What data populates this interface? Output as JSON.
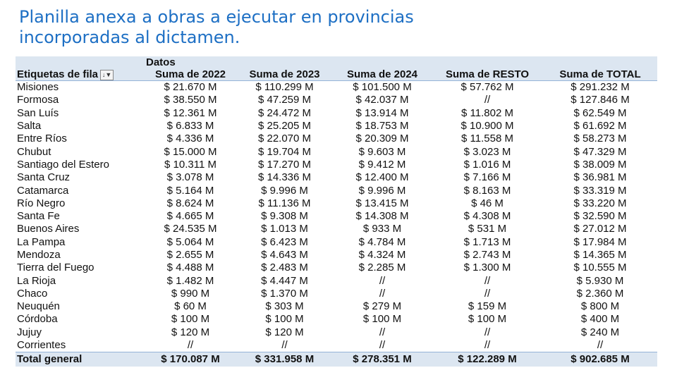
{
  "title_lines": [
    "Planilla anexa a obras a ejecutar en provincias",
    "incorporadas al dictamen."
  ],
  "table": {
    "group_header": "Datos",
    "row_label_header": "Etiquetas de fila",
    "filter_icon": "sort-filter-icon",
    "columns": [
      "Suma de 2022",
      "Suma de 2023",
      "Suma de 2024",
      "Suma de RESTO",
      "Suma de TOTAL"
    ],
    "rows": [
      [
        "Misiones",
        "$ 21.670 M",
        "$ 110.299 M",
        "$ 101.500 M",
        "$ 57.762 M",
        "$ 291.232 M"
      ],
      [
        "Formosa",
        "$ 38.550 M",
        "$ 47.259 M",
        "$ 42.037 M",
        "//",
        "$ 127.846 M"
      ],
      [
        "San Luís",
        "$ 12.361 M",
        "$ 24.472 M",
        "$ 13.914 M",
        "$ 11.802 M",
        "$ 62.549 M"
      ],
      [
        "Salta",
        "$ 6.833 M",
        "$ 25.205 M",
        "$ 18.753 M",
        "$ 10.900 M",
        "$ 61.692 M"
      ],
      [
        "Entre Ríos",
        "$ 4.336 M",
        "$ 22.070 M",
        "$ 20.309 M",
        "$ 11.558 M",
        "$ 58.273 M"
      ],
      [
        "Chubut",
        "$ 15.000 M",
        "$ 19.704 M",
        "$ 9.603 M",
        "$ 3.023 M",
        "$ 47.329 M"
      ],
      [
        "Santiago del Estero",
        "$ 10.311 M",
        "$ 17.270 M",
        "$ 9.412 M",
        "$ 1.016 M",
        "$ 38.009 M"
      ],
      [
        "Santa Cruz",
        "$ 3.078 M",
        "$ 14.336 M",
        "$ 12.400 M",
        "$ 7.166 M",
        "$ 36.981 M"
      ],
      [
        "Catamarca",
        "$ 5.164 M",
        "$ 9.996 M",
        "$ 9.996 M",
        "$ 8.163 M",
        "$ 33.319 M"
      ],
      [
        "Río Negro",
        "$ 8.624 M",
        "$ 11.136 M",
        "$ 13.415 M",
        "$ 46 M",
        "$ 33.220 M"
      ],
      [
        "Santa Fe",
        "$ 4.665 M",
        "$ 9.308 M",
        "$ 14.308 M",
        "$ 4.308 M",
        "$ 32.590 M"
      ],
      [
        "Buenos Aires",
        "$ 24.535 M",
        "$ 1.013 M",
        "$ 933 M",
        "$ 531 M",
        "$ 27.012 M"
      ],
      [
        "La Pampa",
        "$ 5.064 M",
        "$ 6.423 M",
        "$ 4.784 M",
        "$ 1.713 M",
        "$ 17.984 M"
      ],
      [
        "Mendoza",
        "$ 2.655 M",
        "$ 4.643 M",
        "$ 4.324 M",
        "$ 2.743 M",
        "$ 14.365 M"
      ],
      [
        "Tierra del Fuego",
        "$ 4.488 M",
        "$ 2.483 M",
        "$ 2.285 M",
        "$ 1.300 M",
        "$ 10.555 M"
      ],
      [
        "La Rioja",
        "$ 1.482 M",
        "$ 4.447 M",
        "//",
        "//",
        "$ 5.930 M"
      ],
      [
        "Chaco",
        "$ 990 M",
        "$ 1.370 M",
        "//",
        "//",
        "$ 2.360 M"
      ],
      [
        "Neuquén",
        "$ 60 M",
        "$ 303 M",
        "$ 279 M",
        "$ 159 M",
        "$ 800 M"
      ],
      [
        "Córdoba",
        "$ 100 M",
        "$ 100 M",
        "$ 100 M",
        "$ 100 M",
        "$ 400 M"
      ],
      [
        "Jujuy",
        "$ 120 M",
        "$ 120 M",
        "//",
        "//",
        "$ 240 M"
      ],
      [
        "Corrientes",
        "//",
        "//",
        "//",
        "//",
        "//"
      ]
    ],
    "total": [
      "Total general",
      "$ 170.087 M",
      "$ 331.958 M",
      "$ 278.351 M",
      "$ 122.289 M",
      "$ 902.685 M"
    ]
  }
}
